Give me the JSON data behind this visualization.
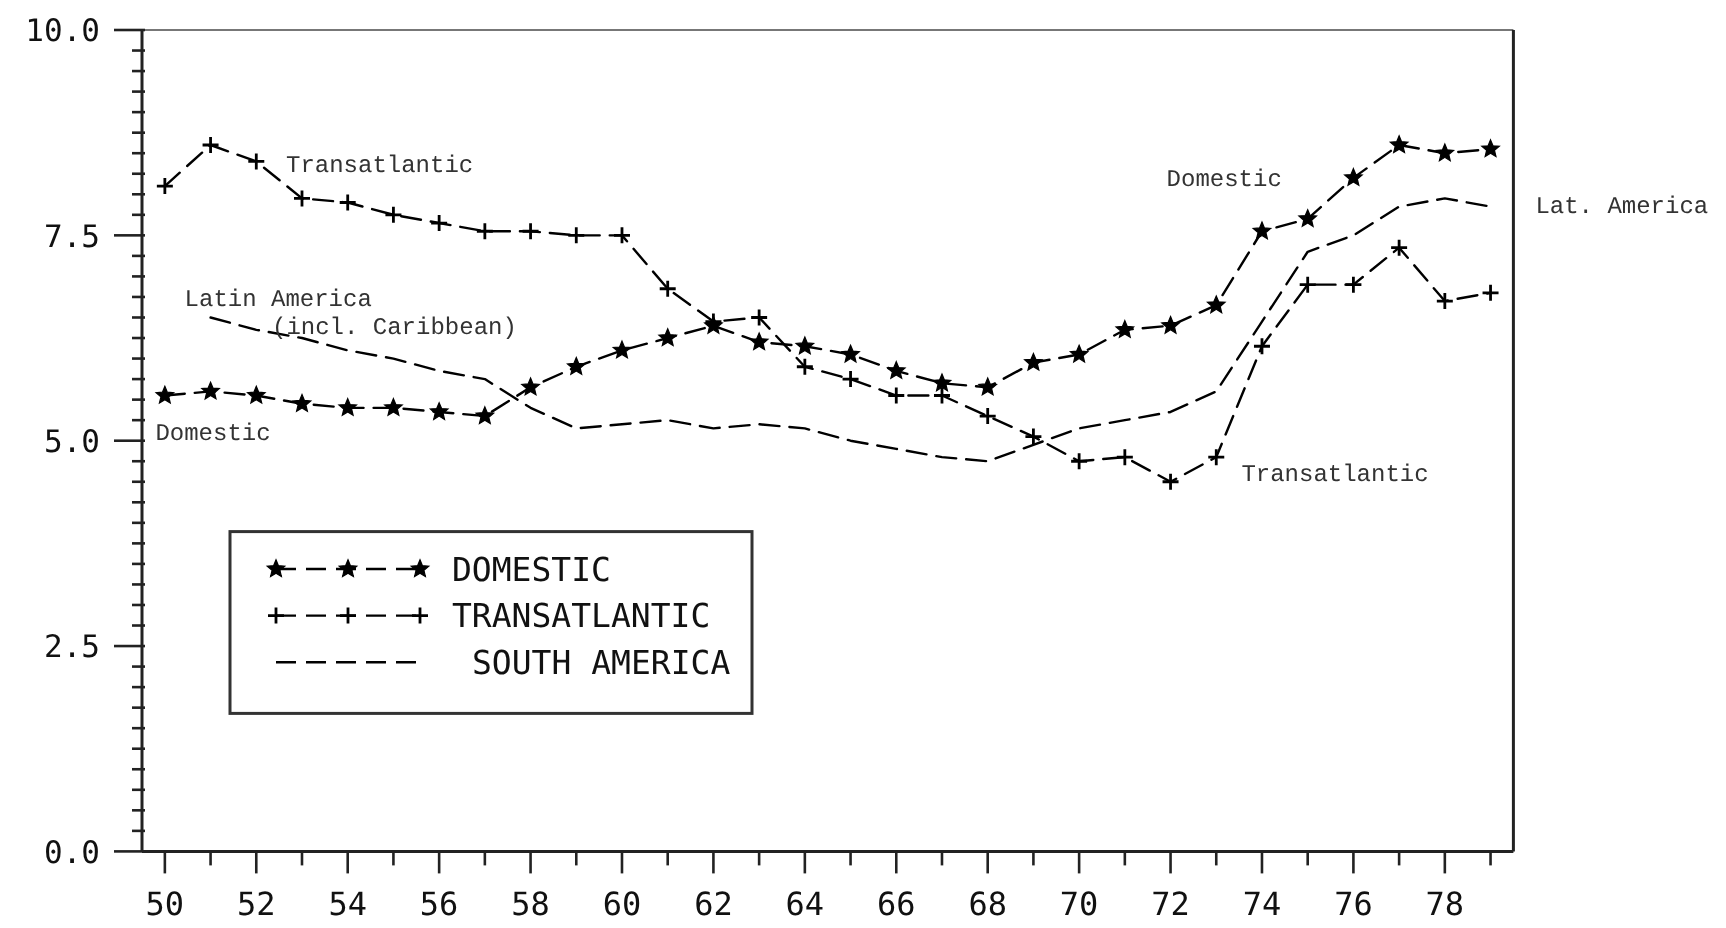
{
  "chart_data": {
    "type": "line",
    "x": [
      50,
      51,
      52,
      53,
      54,
      55,
      56,
      57,
      58,
      59,
      60,
      61,
      62,
      63,
      64,
      65,
      66,
      67,
      68,
      69,
      70,
      71,
      72,
      73,
      74,
      75,
      76,
      77,
      78,
      79
    ],
    "xlim": [
      49.5,
      79.5
    ],
    "xticks": [
      50,
      {
        "value": 51,
        "label": null
      },
      52,
      {
        "value": 53,
        "label": null
      },
      54,
      {
        "value": 55,
        "label": null
      },
      56,
      {
        "value": 57,
        "label": null
      },
      58,
      {
        "value": 59,
        "label": null
      },
      60,
      {
        "value": 61,
        "label": null
      },
      62,
      {
        "value": 63,
        "label": null
      },
      64,
      {
        "value": 65,
        "label": null
      },
      66,
      {
        "value": 67,
        "label": null
      },
      68,
      {
        "value": 69,
        "label": null
      },
      70,
      {
        "value": 71,
        "label": null
      },
      72,
      {
        "value": 73,
        "label": null
      },
      74,
      {
        "value": 75,
        "label": null
      },
      76,
      {
        "value": 77,
        "label": null
      },
      78,
      {
        "value": 79,
        "label": null
      }
    ],
    "ylim": [
      0,
      10
    ],
    "yticks": [
      {
        "value": 0,
        "label": "0.0"
      },
      {
        "value": 0.25,
        "label": null
      },
      {
        "value": 0.5,
        "label": null
      },
      {
        "value": 0.75,
        "label": null
      },
      {
        "value": 1,
        "label": null
      },
      {
        "value": 1.25,
        "label": null
      },
      {
        "value": 1.5,
        "label": null
      },
      {
        "value": 1.75,
        "label": null
      },
      {
        "value": 2,
        "label": null
      },
      {
        "value": 2.25,
        "label": null
      },
      2.5,
      {
        "value": 2.75,
        "label": null
      },
      {
        "value": 3,
        "label": null
      },
      {
        "value": 3.25,
        "label": null
      },
      {
        "value": 3.5,
        "label": null
      },
      {
        "value": 3.75,
        "label": null
      },
      {
        "value": 4,
        "label": null
      },
      {
        "value": 4.25,
        "label": null
      },
      {
        "value": 4.5,
        "label": null
      },
      {
        "value": 4.75,
        "label": null
      },
      {
        "value": 5,
        "label": "5.0"
      },
      {
        "value": 5.25,
        "label": null
      },
      {
        "value": 5.5,
        "label": null
      },
      {
        "value": 5.75,
        "label": null
      },
      {
        "value": 6,
        "label": null
      },
      {
        "value": 6.25,
        "label": null
      },
      {
        "value": 6.5,
        "label": null
      },
      {
        "value": 6.75,
        "label": null
      },
      {
        "value": 7,
        "label": null
      },
      {
        "value": 7.25,
        "label": null
      },
      7.5,
      {
        "value": 7.75,
        "label": null
      },
      {
        "value": 8,
        "label": null
      },
      {
        "value": 8.25,
        "label": null
      },
      {
        "value": 8.5,
        "label": null
      },
      {
        "value": 8.75,
        "label": null
      },
      {
        "value": 9,
        "label": null
      },
      {
        "value": 9.25,
        "label": null
      },
      {
        "value": 9.5,
        "label": null
      },
      {
        "value": 9.75,
        "label": null
      },
      {
        "value": 10,
        "label": "10.0"
      }
    ],
    "series": [
      {
        "name": "DOMESTIC",
        "color": "#000000",
        "marker": "star",
        "line_style": "dashed",
        "values": [
          5.55,
          5.6,
          5.55,
          5.45,
          5.4,
          5.4,
          5.35,
          5.3,
          5.65,
          5.9,
          6.1,
          6.25,
          6.4,
          6.2,
          6.15,
          6.05,
          5.85,
          5.7,
          5.65,
          5.95,
          6.05,
          6.35,
          6.4,
          6.65,
          7.55,
          7.7,
          8.2,
          8.6,
          8.5,
          8.55
        ]
      },
      {
        "name": "TRANSATLANTIC",
        "color": "#000000",
        "marker": "cross",
        "line_style": "dashed",
        "values": [
          8.1,
          8.6,
          8.4,
          7.95,
          7.9,
          7.75,
          7.65,
          7.55,
          7.55,
          7.5,
          7.5,
          6.85,
          6.45,
          6.5,
          5.9,
          5.75,
          5.55,
          5.55,
          5.3,
          5.05,
          4.75,
          4.8,
          4.5,
          4.8,
          6.15,
          6.9,
          6.9,
          7.35,
          6.7,
          6.8
        ]
      },
      {
        "name": "SOUTH AMERICA",
        "color": "#000000",
        "marker": "none",
        "line_style": "dashed",
        "values": [
          null,
          6.5,
          6.35,
          6.25,
          6.1,
          6.0,
          5.85,
          5.75,
          5.4,
          5.15,
          5.2,
          5.25,
          5.15,
          5.2,
          5.15,
          5.0,
          4.9,
          4.8,
          4.75,
          4.95,
          5.15,
          5.25,
          5.35,
          5.6,
          6.45,
          7.3,
          7.5,
          7.85,
          7.95,
          7.85
        ]
      }
    ],
    "legend": "bottom left",
    "annotations": [
      "Transatlantic",
      "Latin America",
      "(incl. Caribbean)",
      "Domestic",
      "Domestic",
      "Lat. America",
      "Transatlantic"
    ]
  }
}
